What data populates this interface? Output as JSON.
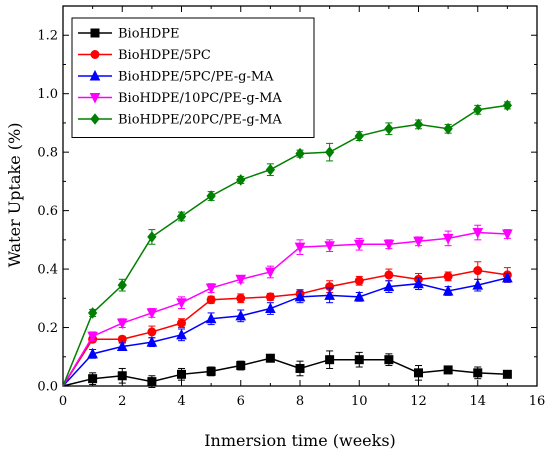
{
  "chart_data": {
    "type": "line",
    "xlabel": "Inmersion time (weeks)",
    "ylabel": "Water Uptake (%)",
    "xlim": [
      0,
      16
    ],
    "ylim": [
      0,
      1.3
    ],
    "xticks": [
      0,
      2,
      4,
      6,
      8,
      10,
      12,
      14,
      16
    ],
    "yticks": [
      0.0,
      0.2,
      0.4,
      0.6,
      0.8,
      1.0,
      1.2
    ],
    "xtick_labels": [
      "0",
      "2",
      "4",
      "6",
      "8",
      "10",
      "12",
      "14",
      "16"
    ],
    "ytick_labels": [
      "0.0",
      "0.2",
      "0.4",
      "0.6",
      "0.8",
      "1.0",
      "1.2"
    ],
    "grid": false,
    "legend_position": "top-left",
    "x": [
      0,
      1,
      2,
      3,
      4,
      5,
      6,
      7,
      8,
      9,
      10,
      11,
      12,
      13,
      14,
      15
    ],
    "series": [
      {
        "name": "BioHDPE",
        "color": "#000000",
        "marker": "square",
        "values": [
          0,
          0.025,
          0.035,
          0.015,
          0.04,
          0.05,
          0.07,
          0.095,
          0.06,
          0.09,
          0.09,
          0.09,
          0.045,
          0.055,
          0.045,
          0.04
        ],
        "errors": [
          0,
          0.02,
          0.025,
          0.02,
          0.02,
          0.015,
          0.015,
          0.012,
          0.025,
          0.03,
          0.025,
          0.02,
          0.025,
          0.008,
          0.02,
          0.008
        ]
      },
      {
        "name": "BioHDPE/5PC",
        "color": "#ff0000",
        "marker": "circle",
        "values": [
          0,
          0.16,
          0.16,
          0.185,
          0.215,
          0.295,
          0.3,
          0.305,
          0.315,
          0.34,
          0.36,
          0.38,
          0.365,
          0.375,
          0.395,
          0.38
        ],
        "errors": [
          0,
          0.01,
          0.01,
          0.02,
          0.015,
          0.012,
          0.015,
          0.012,
          0.015,
          0.02,
          0.015,
          0.02,
          0.02,
          0.015,
          0.03,
          0.025
        ]
      },
      {
        "name": "BioHDPE/5PC/PE-g-MA",
        "color": "#0000ff",
        "marker": "triangle-up",
        "values": [
          0,
          0.11,
          0.135,
          0.15,
          0.175,
          0.23,
          0.24,
          0.265,
          0.305,
          0.31,
          0.305,
          0.34,
          0.35,
          0.325,
          0.345,
          0.37
        ],
        "errors": [
          0,
          0.015,
          0.012,
          0.015,
          0.02,
          0.02,
          0.02,
          0.02,
          0.02,
          0.025,
          0.015,
          0.02,
          0.02,
          0.015,
          0.02,
          0.015
        ]
      },
      {
        "name": "BioHDPE/10PC/PE-g-MA",
        "color": "#ff00ff",
        "marker": "triangle-down",
        "values": [
          0,
          0.17,
          0.215,
          0.25,
          0.285,
          0.335,
          0.365,
          0.39,
          0.475,
          0.48,
          0.485,
          0.485,
          0.495,
          0.505,
          0.525,
          0.52
        ],
        "errors": [
          0,
          0.015,
          0.015,
          0.015,
          0.02,
          0.015,
          0.012,
          0.02,
          0.025,
          0.02,
          0.02,
          0.015,
          0.015,
          0.025,
          0.025,
          0.015
        ]
      },
      {
        "name": "BioHDPE/20PC/PE-g-MA",
        "color": "#008000",
        "marker": "diamond",
        "values": [
          0,
          0.25,
          0.345,
          0.51,
          0.58,
          0.65,
          0.705,
          0.74,
          0.795,
          0.8,
          0.855,
          0.88,
          0.895,
          0.88,
          0.945,
          0.96
        ],
        "errors": [
          0,
          0.012,
          0.02,
          0.025,
          0.015,
          0.015,
          0.012,
          0.02,
          0.012,
          0.03,
          0.015,
          0.02,
          0.015,
          0.015,
          0.015,
          0.012
        ]
      }
    ]
  }
}
